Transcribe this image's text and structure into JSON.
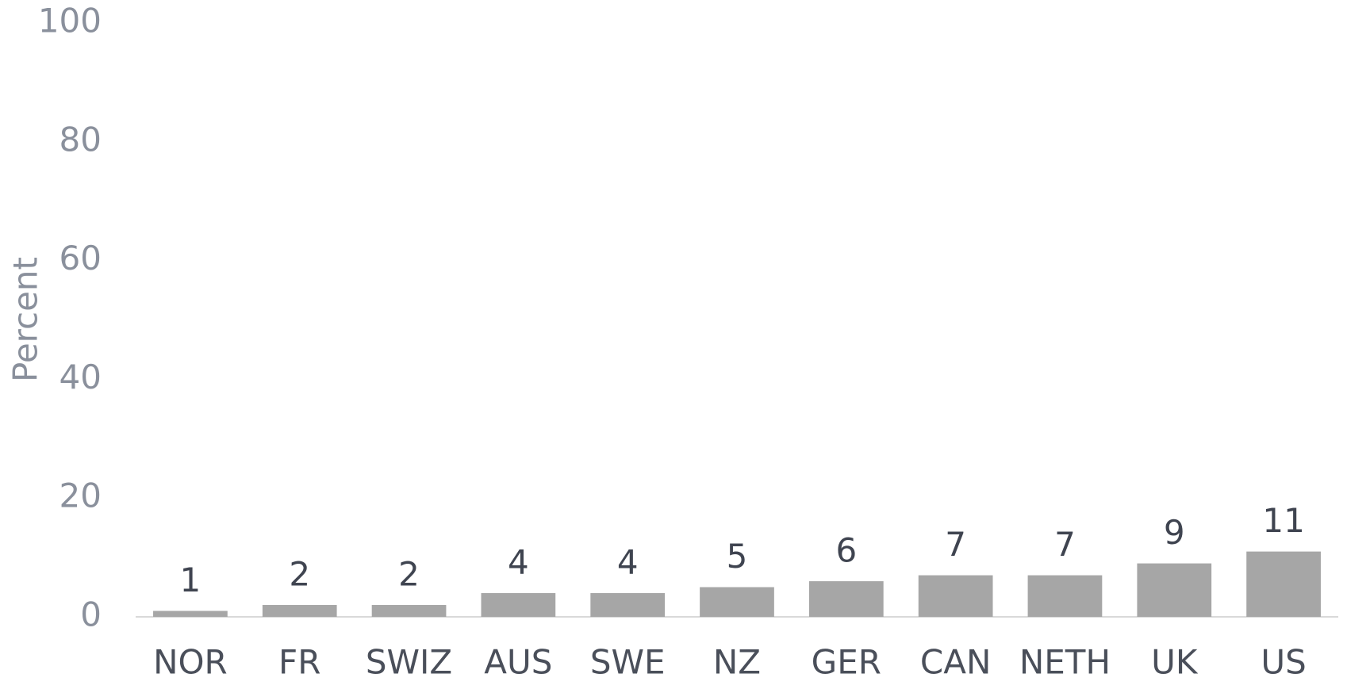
{
  "chart_data": {
    "type": "bar",
    "y_label": "Percent",
    "categories": [
      "NOR",
      "FR",
      "SWIZ",
      "AUS",
      "SWE",
      "NZ",
      "GER",
      "CAN",
      "NETH",
      "UK",
      "US"
    ],
    "values": [
      1,
      2,
      2,
      4,
      4,
      5,
      6,
      7,
      7,
      9,
      11
    ],
    "color": "#a6a6a6",
    "ylim": [
      0,
      100
    ],
    "yticks": [
      0,
      20,
      40,
      60,
      80,
      100
    ],
    "grid": false
  }
}
